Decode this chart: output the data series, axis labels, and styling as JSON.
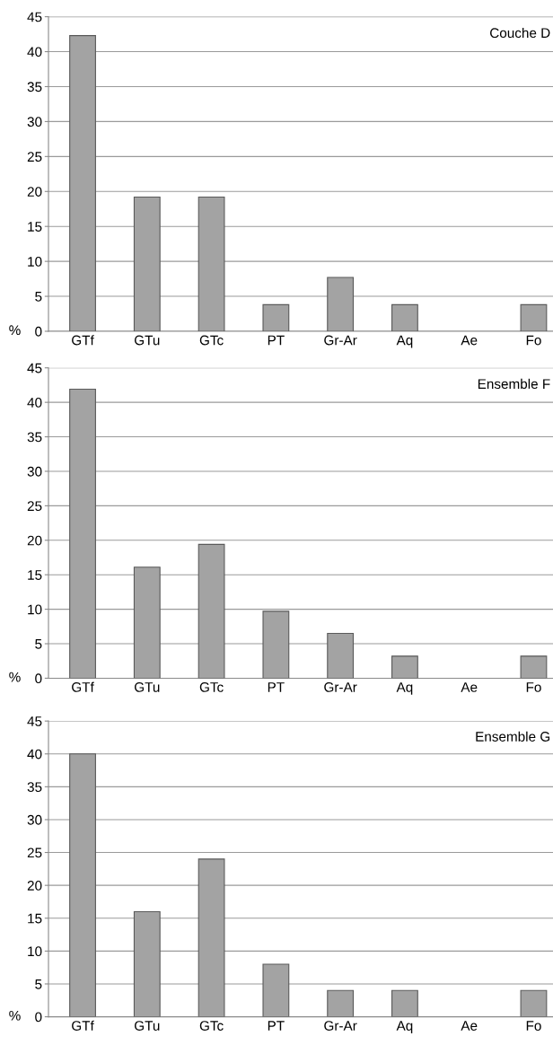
{
  "chart_data": [
    {
      "type": "bar",
      "title": "Couche D",
      "ylabel": "%",
      "categories": [
        "GTf",
        "GTu",
        "GTc",
        "PT",
        "Gr-Ar",
        "Aq",
        "Ae",
        "Fo"
      ],
      "values": [
        42.3,
        19.2,
        19.2,
        3.8,
        7.7,
        3.8,
        0,
        3.8
      ],
      "color": "#a3a3a3",
      "ylim": [
        0,
        45
      ],
      "yticks": [
        0,
        5,
        10,
        15,
        20,
        25,
        30,
        35,
        40,
        45
      ],
      "grid": "y",
      "legend": false
    },
    {
      "type": "bar",
      "title": "Ensemble F",
      "ylabel": "%",
      "categories": [
        "GTf",
        "GTu",
        "GTc",
        "PT",
        "Gr-Ar",
        "Aq",
        "Ae",
        "Fo"
      ],
      "values": [
        41.9,
        16.1,
        19.4,
        9.7,
        6.5,
        3.2,
        0,
        3.2
      ],
      "color": "#a3a3a3",
      "ylim": [
        0,
        45
      ],
      "yticks": [
        0,
        5,
        10,
        15,
        20,
        25,
        30,
        35,
        40,
        45
      ],
      "grid": "y",
      "legend": false
    },
    {
      "type": "bar",
      "title": "Ensemble G",
      "ylabel": "%",
      "categories": [
        "GTf",
        "GTu",
        "GTc",
        "PT",
        "Gr-Ar",
        "Aq",
        "Ae",
        "Fo"
      ],
      "values": [
        40,
        16,
        24,
        8,
        4,
        4,
        0,
        4
      ],
      "color": "#a3a3a3",
      "ylim": [
        0,
        45
      ],
      "yticks": [
        0,
        5,
        10,
        15,
        20,
        25,
        30,
        35,
        40,
        45
      ],
      "grid": "y",
      "legend": false
    }
  ]
}
